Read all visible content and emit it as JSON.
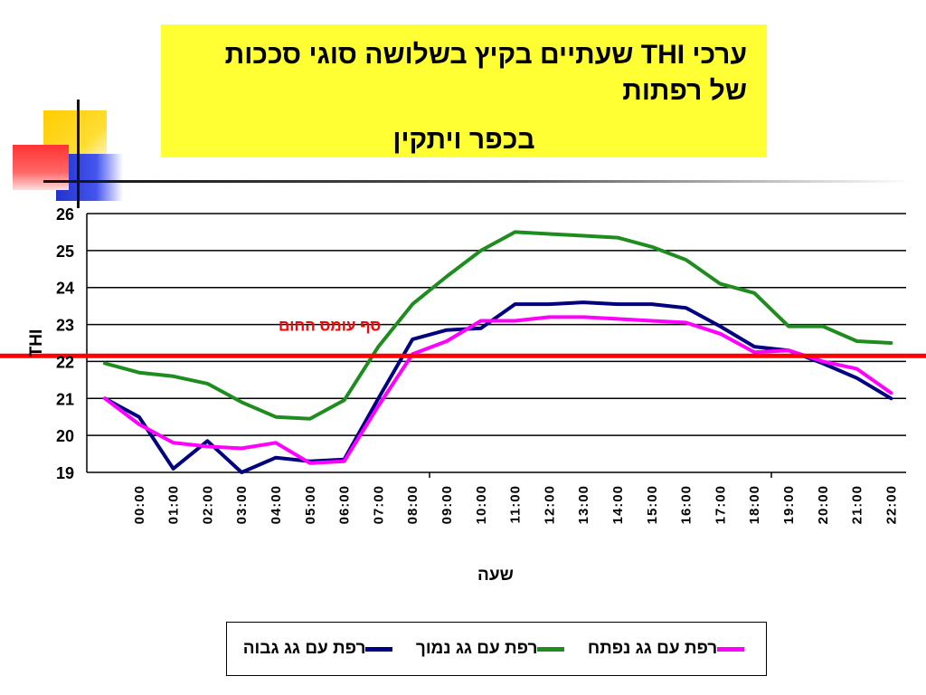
{
  "title": {
    "line1": "ערכי THI  שעתיים בקיץ בשלושה סוגי סככות של רפתות",
    "line2": "בכפר ויתקין"
  },
  "colors": {
    "title_bg": "#ffff33",
    "high_roof": "#000080",
    "low_roof": "#1e8c1e",
    "open_roof": "#ff00ff",
    "threshold": "#ff0000",
    "grid": "#000000"
  },
  "chart_data": {
    "type": "line",
    "title": "ערכי THI  שעתיים בקיץ בשלושה סוגי סככות של רפתות בכפר ויתקין",
    "xlabel": "שעה",
    "ylabel": "THI",
    "ylim": [
      19,
      26
    ],
    "yticks": [
      19,
      20,
      21,
      22,
      23,
      24,
      25,
      26
    ],
    "grid": true,
    "legend_position": "bottom",
    "categories": [
      "",
      "00:00",
      "01:00",
      "02:00",
      "03:00",
      "04:00",
      "05:00",
      "06:00",
      "07:00",
      "08:00",
      "09:00",
      "10:00",
      "11:00",
      "12:00",
      "13:00",
      "14:00",
      "15:00",
      "16:00",
      "17:00",
      "18:00",
      "19:00",
      "20:00",
      "21:00",
      "22:00"
    ],
    "series": [
      {
        "name": "רפת עם גג גבוה",
        "color": "#000080",
        "values": [
          21.0,
          20.5,
          19.1,
          19.85,
          19.0,
          19.4,
          19.3,
          19.35,
          21.0,
          22.6,
          22.85,
          22.9,
          23.55,
          23.55,
          23.6,
          23.55,
          23.55,
          23.45,
          22.95,
          22.4,
          22.3,
          21.95,
          21.55,
          21.0
        ]
      },
      {
        "name": "רפת עם גג נמוך",
        "color": "#1e8c1e",
        "values": [
          21.95,
          21.7,
          21.6,
          21.4,
          20.9,
          20.5,
          20.45,
          20.95,
          22.4,
          23.55,
          24.3,
          25.0,
          25.5,
          25.45,
          25.4,
          25.35,
          25.1,
          24.75,
          24.1,
          23.85,
          22.95,
          22.95,
          22.55,
          22.5
        ]
      },
      {
        "name": "רפת עם גג נפתח",
        "color": "#ff00ff",
        "values": [
          21.0,
          20.3,
          19.8,
          19.7,
          19.65,
          19.8,
          19.25,
          19.3,
          20.8,
          22.2,
          22.55,
          23.1,
          23.1,
          23.2,
          23.2,
          23.15,
          23.1,
          23.05,
          22.75,
          22.25,
          22.3,
          22.0,
          21.8,
          21.15
        ]
      }
    ],
    "annotations": [
      {
        "text": "סף עומס החום",
        "y": 22.15
      }
    ]
  }
}
